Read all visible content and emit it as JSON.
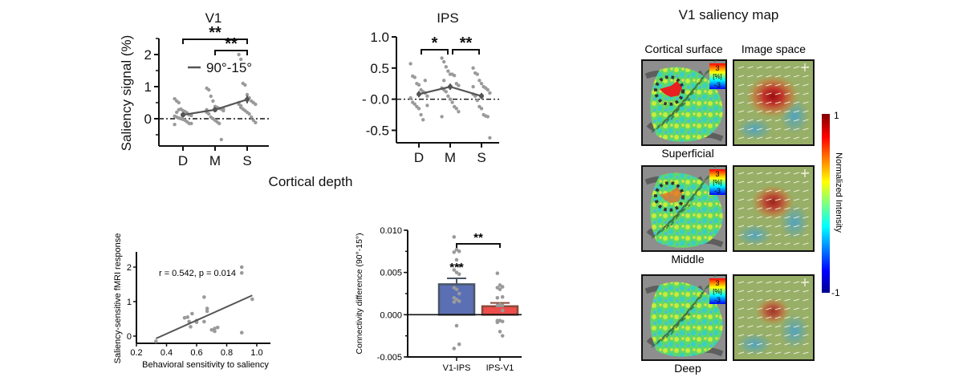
{
  "figure": {
    "shared_xlabel": "Cortical depth"
  },
  "chart_data": [
    {
      "id": "v1",
      "type": "scatter",
      "title": "V1",
      "ylabel": "Saliency signal (%)",
      "xlabel": "",
      "categories": [
        "D",
        "M",
        "S"
      ],
      "ylim": [
        -0.85,
        2.5
      ],
      "yticks": [
        0,
        1,
        2
      ],
      "ytick_labels": [
        "0",
        "1",
        "2"
      ],
      "legend": "90°-15°",
      "legend_position": "top-center",
      "zero_line": true,
      "mean": [
        0.12,
        0.28,
        0.6
      ],
      "sem": [
        0.08,
        0.08,
        0.12
      ],
      "points": [
        [
          0.62,
          0.55,
          0.5,
          0.3,
          0.25,
          0.22,
          0.18,
          0.12,
          0.1,
          0.08,
          0.05,
          0.02,
          0.0,
          -0.02,
          -0.05,
          -0.1,
          -0.15,
          -0.15,
          -0.18,
          0.2,
          0.28
        ],
        [
          0.95,
          0.9,
          0.7,
          0.55,
          0.38,
          0.35,
          0.32,
          0.3,
          0.25,
          0.2,
          0.15,
          0.05,
          0.0,
          -0.05,
          -0.1,
          -0.15,
          -0.65,
          0.3,
          0.28
        ],
        [
          2.0,
          1.85,
          1.1,
          1.05,
          0.75,
          0.65,
          0.55,
          0.5,
          0.45,
          0.45,
          0.4,
          0.3,
          0.25,
          0.2,
          0.15,
          0.05,
          -0.05,
          -0.12,
          0.5,
          0.35
        ]
      ],
      "annotations": [
        {
          "from": "D",
          "to": "S",
          "label": "**"
        },
        {
          "from": "M",
          "to": "S",
          "label": "**"
        }
      ]
    },
    {
      "id": "ips",
      "type": "scatter",
      "title": "IPS",
      "ylabel": "",
      "xlabel": "",
      "categories": [
        "D",
        "M",
        "S"
      ],
      "ylim": [
        -0.7,
        1.0
      ],
      "yticks": [
        1.0,
        0.5,
        0.0,
        -0.5
      ],
      "ytick_labels": [
        "1.0",
        "0.5",
        "- 0.0",
        "-0.5"
      ],
      "zero_line": true,
      "mean": [
        0.08,
        0.2,
        0.05
      ],
      "sem": [
        0.05,
        0.05,
        0.05
      ],
      "points": [
        [
          0.57,
          0.37,
          0.35,
          0.25,
          0.23,
          0.15,
          0.12,
          0.1,
          0.05,
          0.02,
          -0.05,
          -0.08,
          -0.12,
          -0.15,
          -0.25,
          -0.33,
          0.3,
          -0.1
        ],
        [
          0.66,
          0.6,
          0.52,
          0.45,
          0.4,
          0.4,
          0.38,
          0.25,
          0.22,
          0.18,
          0.15,
          0.12,
          0.05,
          0.0,
          -0.05,
          -0.12,
          -0.15,
          -0.2,
          -0.28,
          0.3
        ],
        [
          0.5,
          0.42,
          0.4,
          0.3,
          0.25,
          0.2,
          0.18,
          0.15,
          0.1,
          0.08,
          0.05,
          -0.02,
          -0.12,
          -0.15,
          -0.25,
          -0.27,
          -0.28,
          -0.62,
          0.2
        ]
      ],
      "annotations": [
        {
          "from": "D",
          "to": "M",
          "label": "*"
        },
        {
          "from": "M",
          "to": "S",
          "label": "**"
        }
      ]
    },
    {
      "id": "correlation",
      "type": "scatter",
      "title": "",
      "xlabel": "Behavioral sensitivity to saliency",
      "ylabel": "Saliency-sensitive fMRI response",
      "xlim": [
        0.2,
        1.05
      ],
      "ylim": [
        -0.2,
        2.4
      ],
      "xticks": [
        0.2,
        0.4,
        0.6,
        0.8,
        1.0
      ],
      "xtick_labels": [
        "0.2",
        "0.4",
        "0.6",
        "0.8",
        "1.0"
      ],
      "yticks": [
        0,
        1,
        2
      ],
      "ytick_labels": [
        "0",
        "1",
        "2"
      ],
      "annotation": "r = 0.542, p = 0.014",
      "x": [
        0.33,
        0.52,
        0.54,
        0.55,
        0.56,
        0.57,
        0.6,
        0.6,
        0.65,
        0.65,
        0.67,
        0.67,
        0.7,
        0.72,
        0.72,
        0.74,
        0.9,
        0.9,
        0.9,
        0.97
      ],
      "y": [
        -0.15,
        0.53,
        0.55,
        0.42,
        0.27,
        0.65,
        0.45,
        0.4,
        1.13,
        0.42,
        0.8,
        0.72,
        0.18,
        0.14,
        0.22,
        0.25,
        2.0,
        1.83,
        0.1,
        1.07
      ],
      "fit_line": {
        "x": [
          0.33,
          0.97
        ],
        "y": [
          -0.07,
          1.18
        ]
      }
    },
    {
      "id": "connectivity",
      "type": "bar",
      "title": "",
      "xlabel": "",
      "ylabel": "Connectivity difference  (90°-15°)",
      "categories": [
        "V1-IPS",
        "IPS-V1"
      ],
      "values": [
        0.0036,
        0.001
      ],
      "sem": [
        0.0007,
        0.0004
      ],
      "ylim": [
        -0.005,
        0.01
      ],
      "yticks": [
        0.01,
        0.005,
        0.0,
        -0.005
      ],
      "ytick_labels": [
        "0.010",
        "0.005",
        "0.000",
        "-0.005"
      ],
      "bar_colors": [
        "#5b6fb5",
        "#ef4c4c"
      ],
      "bar_edge_colors": [
        "#4a5566",
        "#8a4a3a"
      ],
      "points": [
        [
          0.0092,
          0.0077,
          0.0075,
          0.0074,
          0.0065,
          0.0058,
          0.0053,
          0.005,
          0.0048,
          0.0032,
          0.003,
          0.0025,
          0.002,
          0.0018,
          0.0016,
          0.0015,
          -0.0013,
          -0.0035,
          -0.004
        ],
        [
          0.0049,
          0.0035,
          0.0033,
          0.0032,
          0.003,
          0.0021,
          0.002,
          0.0012,
          0.0011,
          0.0011,
          0.0011,
          0.0005,
          -0.0007,
          -0.0007,
          -0.0008,
          -0.0009,
          -0.002,
          -0.0025
        ]
      ],
      "bar_annotations": [
        "***",
        ""
      ],
      "comparison": {
        "from": "V1-IPS",
        "to": "IPS-V1",
        "label": "**"
      }
    }
  ],
  "saliency_map": {
    "title": "V1 saliency map",
    "column_labels": [
      "Cortical surface",
      "Image space"
    ],
    "rows": [
      {
        "label": "Superficial",
        "hotspot_strength": 1.0,
        "roi_circle": true
      },
      {
        "label": "Middle",
        "hotspot_strength": 0.75,
        "roi_circle": true
      },
      {
        "label": "Deep",
        "hotspot_strength": 0.55,
        "roi_circle": false
      }
    ],
    "surface_scale": {
      "max": "3",
      "unit": "[%]",
      "min": "-3"
    },
    "colorbar": {
      "label": "Normalized Intensity",
      "max": "1",
      "min": "-1"
    }
  }
}
